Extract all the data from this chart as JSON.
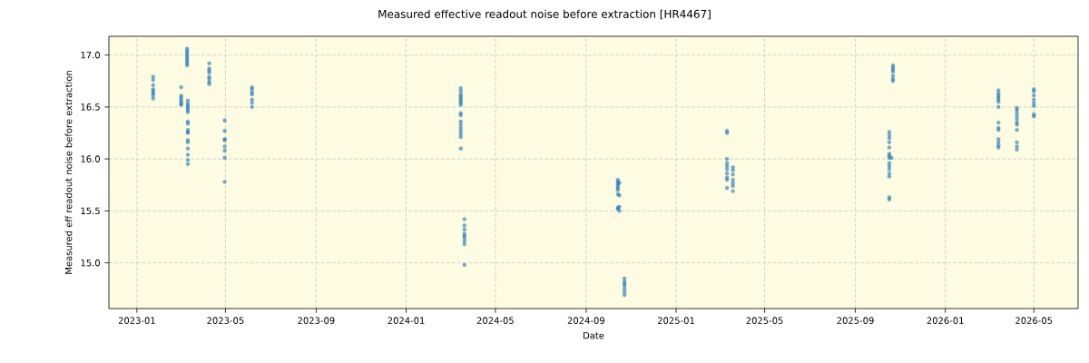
{
  "chart_data": {
    "type": "scatter",
    "title": "Measured effective readout noise before extraction [HR4467]",
    "xlabel": "Date",
    "ylabel": "Measured eff readout noise before extraction",
    "xlim": [
      "2022-11-24",
      "2026-06-30"
    ],
    "xticks": [
      "2023-01",
      "2023-05",
      "2023-09",
      "2024-01",
      "2024-05",
      "2024-09",
      "2025-01",
      "2025-05",
      "2025-09",
      "2026-01",
      "2026-05"
    ],
    "ylim": [
      14.56,
      17.18
    ],
    "yticks": [
      {
        "value": 15,
        "label": "15.0"
      },
      15.5,
      {
        "value": 16,
        "label": "16.0"
      },
      16.5,
      {
        "value": 17,
        "label": "17.0"
      }
    ],
    "grid": true,
    "marker": "circle",
    "series": [
      {
        "color": "#1f77b4",
        "x": [
          "2023-01-23",
          "2023-01-23",
          "2023-01-23",
          "2023-01-23",
          "2023-01-23",
          "2023-01-23",
          "2023-01-23",
          "2023-01-23",
          "2023-03-02",
          "2023-03-02",
          "2023-03-02",
          "2023-03-02",
          "2023-03-02",
          "2023-03-02",
          "2023-03-02",
          "2023-03-10",
          "2023-03-10",
          "2023-03-10",
          "2023-03-10",
          "2023-03-10",
          "2023-03-10",
          "2023-03-10",
          "2023-03-10",
          "2023-03-10",
          "2023-03-11",
          "2023-03-11",
          "2023-03-11",
          "2023-03-11",
          "2023-03-11",
          "2023-03-11",
          "2023-03-11",
          "2023-03-11",
          "2023-03-11",
          "2023-03-11",
          "2023-03-11",
          "2023-03-11",
          "2023-03-11",
          "2023-03-11",
          "2023-03-11",
          "2023-03-11",
          "2023-03-11",
          "2023-04-09",
          "2023-04-09",
          "2023-04-09",
          "2023-04-09",
          "2023-04-09",
          "2023-04-09",
          "2023-04-09",
          "2023-04-09",
          "2023-04-30",
          "2023-04-30",
          "2023-04-30",
          "2023-04-30",
          "2023-04-30",
          "2023-04-30",
          "2023-04-30",
          "2023-04-30",
          "2023-06-06",
          "2023-06-06",
          "2023-06-06",
          "2023-06-06",
          "2023-06-06",
          "2023-06-06",
          "2023-06-06",
          "2024-03-15",
          "2024-03-15",
          "2024-03-15",
          "2024-03-15",
          "2024-03-15",
          "2024-03-15",
          "2024-03-15",
          "2024-03-15",
          "2024-03-15",
          "2024-03-15",
          "2024-03-15",
          "2024-03-15",
          "2024-03-15",
          "2024-03-15",
          "2024-03-15",
          "2024-03-15",
          "2024-03-15",
          "2024-03-20",
          "2024-03-20",
          "2024-03-20",
          "2024-03-20",
          "2024-03-20",
          "2024-03-20",
          "2024-03-20",
          "2024-03-20",
          "2024-03-20",
          "2024-10-14",
          "2024-10-14",
          "2024-10-14",
          "2024-10-14",
          "2024-10-14",
          "2024-10-14",
          "2024-10-14",
          "2024-10-14",
          "2024-10-14",
          "2024-10-16",
          "2024-10-16",
          "2024-10-16",
          "2024-10-16",
          "2024-10-23",
          "2024-10-23",
          "2024-10-23",
          "2024-10-23",
          "2024-10-23",
          "2024-10-23",
          "2024-10-23",
          "2025-03-11",
          "2025-03-11",
          "2025-03-11",
          "2025-03-11",
          "2025-03-11",
          "2025-03-11",
          "2025-03-11",
          "2025-03-11",
          "2025-03-11",
          "2025-03-11",
          "2025-03-19",
          "2025-03-19",
          "2025-03-19",
          "2025-03-19",
          "2025-03-19",
          "2025-03-19",
          "2025-03-19",
          "2025-10-17",
          "2025-10-17",
          "2025-10-17",
          "2025-10-17",
          "2025-10-17",
          "2025-10-17",
          "2025-10-17",
          "2025-10-17",
          "2025-10-17",
          "2025-10-17",
          "2025-10-17",
          "2025-10-17",
          "2025-10-17",
          "2025-10-17",
          "2025-10-17",
          "2025-10-20",
          "2025-10-22",
          "2025-10-22",
          "2025-10-22",
          "2025-10-22",
          "2025-10-22",
          "2025-10-22",
          "2025-10-22",
          "2026-03-14",
          "2026-03-14",
          "2026-03-14",
          "2026-03-14",
          "2026-03-14",
          "2026-03-14",
          "2026-03-14",
          "2026-03-14",
          "2026-03-14",
          "2026-03-14",
          "2026-03-14",
          "2026-03-14",
          "2026-03-14",
          "2026-03-14",
          "2026-04-08",
          "2026-04-08",
          "2026-04-08",
          "2026-04-08",
          "2026-04-08",
          "2026-04-08",
          "2026-04-08",
          "2026-04-08",
          "2026-04-08",
          "2026-04-08",
          "2026-04-08",
          "2026-05-01",
          "2026-05-01",
          "2026-05-01",
          "2026-05-01",
          "2026-05-01",
          "2026-05-01",
          "2026-05-01",
          "2026-05-01"
        ],
        "values": [
          16.79,
          16.76,
          16.71,
          16.67,
          16.65,
          16.63,
          16.61,
          16.58,
          16.69,
          16.61,
          16.59,
          16.57,
          16.55,
          16.53,
          16.52,
          17.06,
          17.04,
          17.02,
          17.0,
          16.98,
          16.96,
          16.94,
          16.92,
          16.9,
          16.56,
          16.53,
          16.51,
          16.49,
          16.47,
          16.45,
          16.36,
          16.34,
          16.28,
          16.26,
          16.25,
          16.18,
          16.16,
          16.1,
          16.04,
          15.99,
          15.95,
          16.92,
          16.87,
          16.85,
          16.83,
          16.79,
          16.77,
          16.74,
          16.72,
          16.37,
          16.27,
          16.19,
          16.18,
          16.12,
          16.08,
          16.01,
          15.78,
          16.69,
          16.67,
          16.64,
          16.62,
          16.57,
          16.54,
          16.5,
          16.68,
          16.65,
          16.62,
          16.6,
          16.58,
          16.56,
          16.54,
          16.52,
          16.44,
          16.42,
          16.36,
          16.33,
          16.3,
          16.27,
          16.24,
          16.21,
          16.1,
          15.42,
          15.36,
          15.32,
          15.28,
          15.26,
          15.24,
          15.21,
          15.18,
          14.98,
          15.8,
          15.78,
          15.76,
          15.74,
          15.72,
          15.7,
          15.66,
          15.53,
          15.52,
          15.77,
          15.65,
          15.54,
          15.5,
          14.85,
          14.82,
          14.8,
          14.78,
          14.75,
          14.72,
          14.69,
          16.27,
          16.25,
          16.0,
          15.96,
          15.93,
          15.9,
          15.86,
          15.82,
          15.8,
          15.72,
          15.92,
          15.89,
          15.85,
          15.8,
          15.77,
          15.74,
          15.69,
          16.26,
          16.23,
          16.2,
          16.16,
          16.11,
          16.05,
          16.03,
          16.01,
          15.96,
          15.93,
          15.9,
          15.86,
          15.83,
          15.63,
          15.61,
          16.01,
          16.9,
          16.88,
          16.86,
          16.84,
          16.8,
          16.77,
          16.75,
          16.66,
          16.63,
          16.61,
          16.59,
          16.57,
          16.55,
          16.5,
          16.35,
          16.3,
          16.28,
          16.19,
          16.16,
          16.13,
          16.11,
          16.49,
          16.47,
          16.44,
          16.41,
          16.38,
          16.35,
          16.33,
          16.28,
          16.16,
          16.12,
          16.09,
          16.67,
          16.65,
          16.61,
          16.57,
          16.54,
          16.51,
          16.43,
          16.41
        ]
      }
    ]
  }
}
